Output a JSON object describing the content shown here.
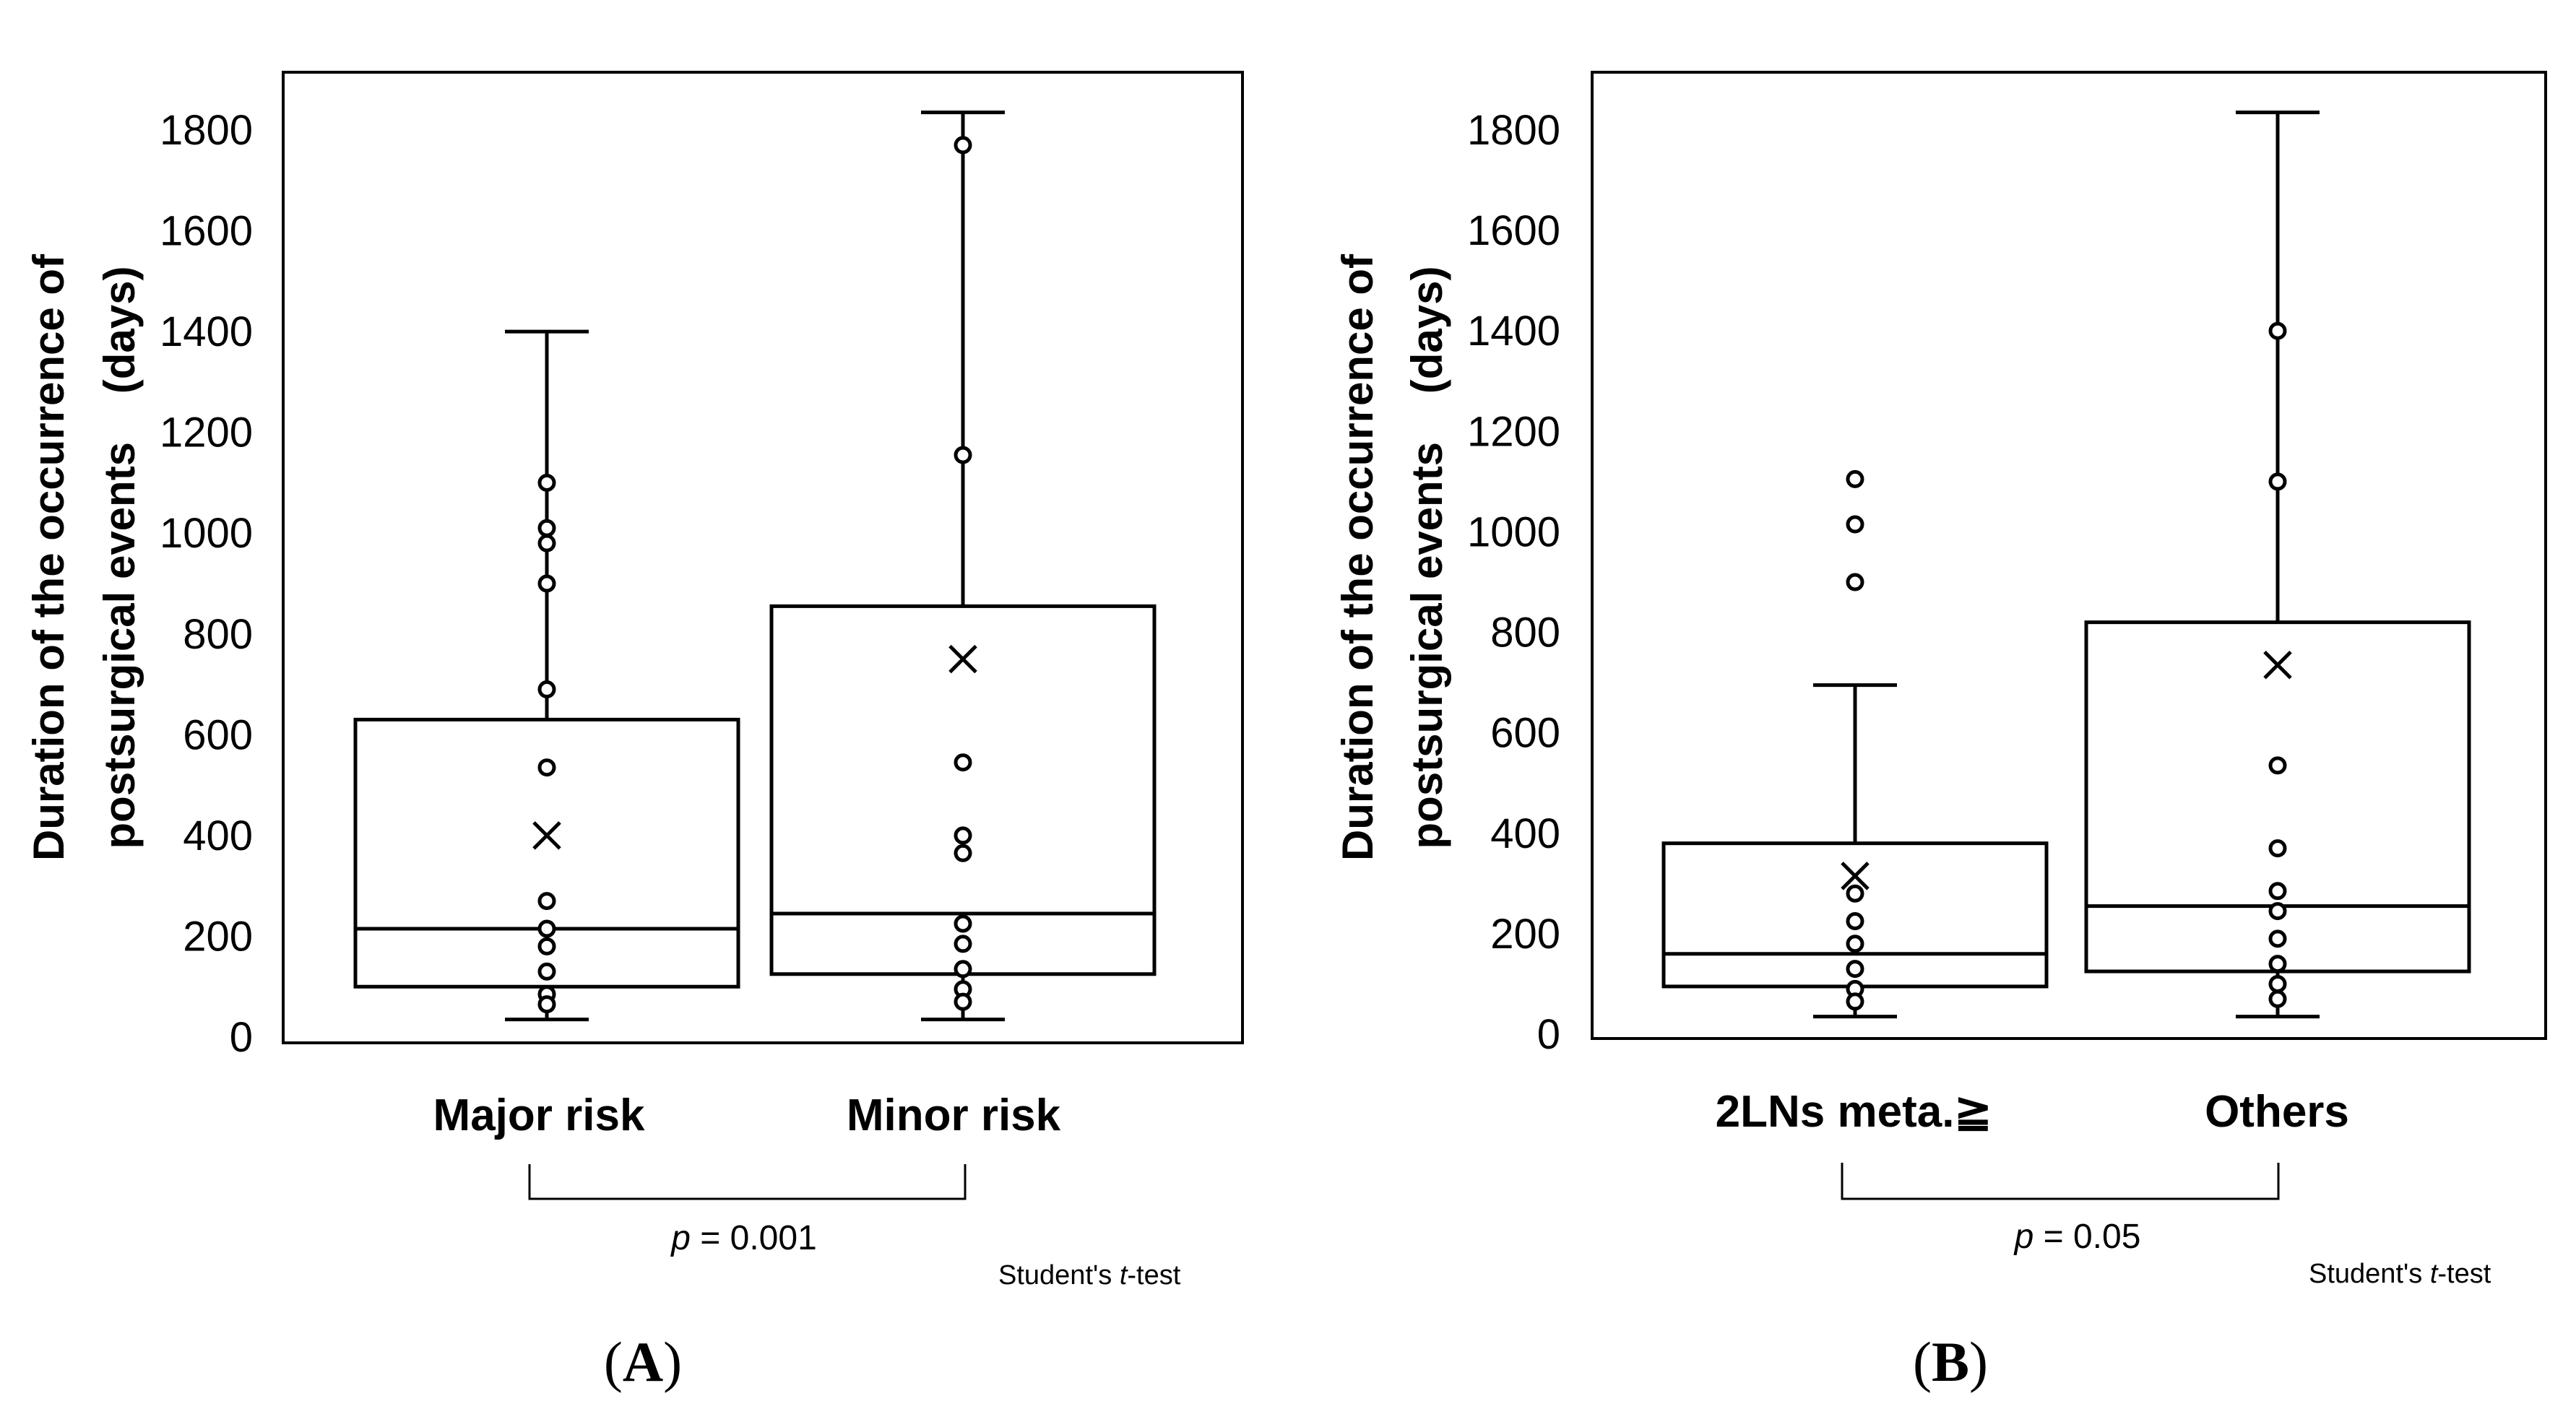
{
  "chart_data": [
    {
      "panel_label": "A",
      "type": "box",
      "ylabel_line1": "Duration of the occurrence of",
      "ylabel_line2": "postsurgical events    (days)",
      "ylim": [
        0,
        1900
      ],
      "yticks": [
        "0",
        "200",
        "400",
        "600",
        "800",
        "1000",
        "1200",
        "1400",
        "1600",
        "1800"
      ],
      "categories": [
        "Major risk",
        "Minor risk"
      ],
      "series": [
        {
          "name": "Major risk",
          "whisker_low": 35,
          "q1": 100,
          "median": 215,
          "q3": 630,
          "whisker_high": 1400,
          "mean": 400,
          "points": [
            1100,
            1010,
            980,
            900,
            690,
            535,
            270,
            215,
            180,
            130,
            85,
            65
          ]
        },
        {
          "name": "Minor risk",
          "whisker_low": 35,
          "q1": 125,
          "median": 245,
          "q3": 855,
          "whisker_high": 1835,
          "mean": 750,
          "points": [
            1770,
            1155,
            545,
            400,
            365,
            225,
            185,
            135,
            95,
            70
          ]
        }
      ],
      "stat_text": "p = 0.001",
      "stat_italic": "p",
      "stat_rest": " = 0.001",
      "test_label": "Student's t-test",
      "test_prefix": "Student's ",
      "test_italic": "t",
      "test_suffix": "-test"
    },
    {
      "panel_label": "B",
      "type": "box",
      "ylabel_line1": "Duration of the occurrence of",
      "ylabel_line2": "postsurgical events    (days)",
      "ylim": [
        0,
        1900
      ],
      "yticks": [
        "0",
        "200",
        "400",
        "600",
        "800",
        "1000",
        "1200",
        "1400",
        "1600",
        "1800"
      ],
      "categories": [
        "2LNs meta.≧",
        "Others"
      ],
      "series": [
        {
          "name": "2LNs meta.≧",
          "whisker_low": 35,
          "q1": 95,
          "median": 160,
          "q3": 380,
          "whisker_high": 695,
          "mean": 315,
          "points": [
            1105,
            1015,
            900,
            280,
            225,
            180,
            130,
            90,
            65
          ]
        },
        {
          "name": "Others",
          "whisker_low": 35,
          "q1": 125,
          "median": 255,
          "q3": 820,
          "whisker_high": 1835,
          "mean": 735,
          "points": [
            1400,
            1100,
            535,
            370,
            285,
            245,
            190,
            140,
            100,
            70
          ]
        }
      ],
      "stat_text": "p = 0.05",
      "stat_italic": "p",
      "stat_rest": " = 0.05",
      "test_label": "Student's t-test",
      "test_prefix": "Student's ",
      "test_italic": "t",
      "test_suffix": "-test"
    }
  ]
}
